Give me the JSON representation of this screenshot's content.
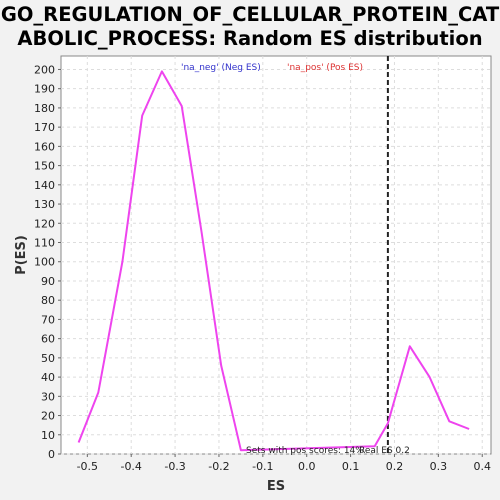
{
  "chart_data": {
    "type": "line",
    "title_line1": "GO_REGULATION_OF_CELLULAR_PROTEIN_CAT",
    "title_line2": "ABOLIC_PROCESS: Random ES distribution",
    "xlabel": "ES",
    "ylabel": "P(ES)",
    "xlim": [
      -0.56,
      0.42
    ],
    "ylim": [
      0,
      207
    ],
    "grid": true,
    "xticks": [
      -0.5,
      -0.4,
      -0.3,
      -0.2,
      -0.1,
      0.0,
      0.1,
      0.2,
      0.3,
      0.4
    ],
    "xtick_labels": [
      "-0.5",
      "-0.4",
      "-0.3",
      "-0.2",
      "-0.1",
      "0.0",
      "0.1",
      "0.2",
      "0.3",
      "0.4"
    ],
    "yticks": [
      0,
      10,
      20,
      30,
      40,
      50,
      60,
      70,
      80,
      90,
      100,
      110,
      120,
      130,
      140,
      150,
      160,
      170,
      180,
      190,
      200
    ],
    "line_color": "#ee44ee",
    "series": [
      {
        "x": [
          -0.52,
          -0.475,
          -0.42,
          -0.375,
          -0.33,
          -0.285,
          -0.24,
          -0.195,
          -0.15,
          0.155,
          0.185,
          0.235,
          0.28,
          0.325,
          0.37
        ],
        "y": [
          6,
          32,
          100,
          176,
          199,
          181,
          116,
          46,
          2,
          4,
          16,
          56,
          40,
          17,
          13
        ]
      }
    ],
    "legend": [
      {
        "label": "'na_neg' (Neg ES)",
        "color": "#3333cc"
      },
      {
        "label": "'na_pos' (Pos ES)",
        "color": "#dd3333"
      }
    ],
    "real_es": 0.185,
    "annotations": {
      "pos_scores": "Sets with pos scores: 14%",
      "real_es": "Real ES 0.2"
    }
  }
}
